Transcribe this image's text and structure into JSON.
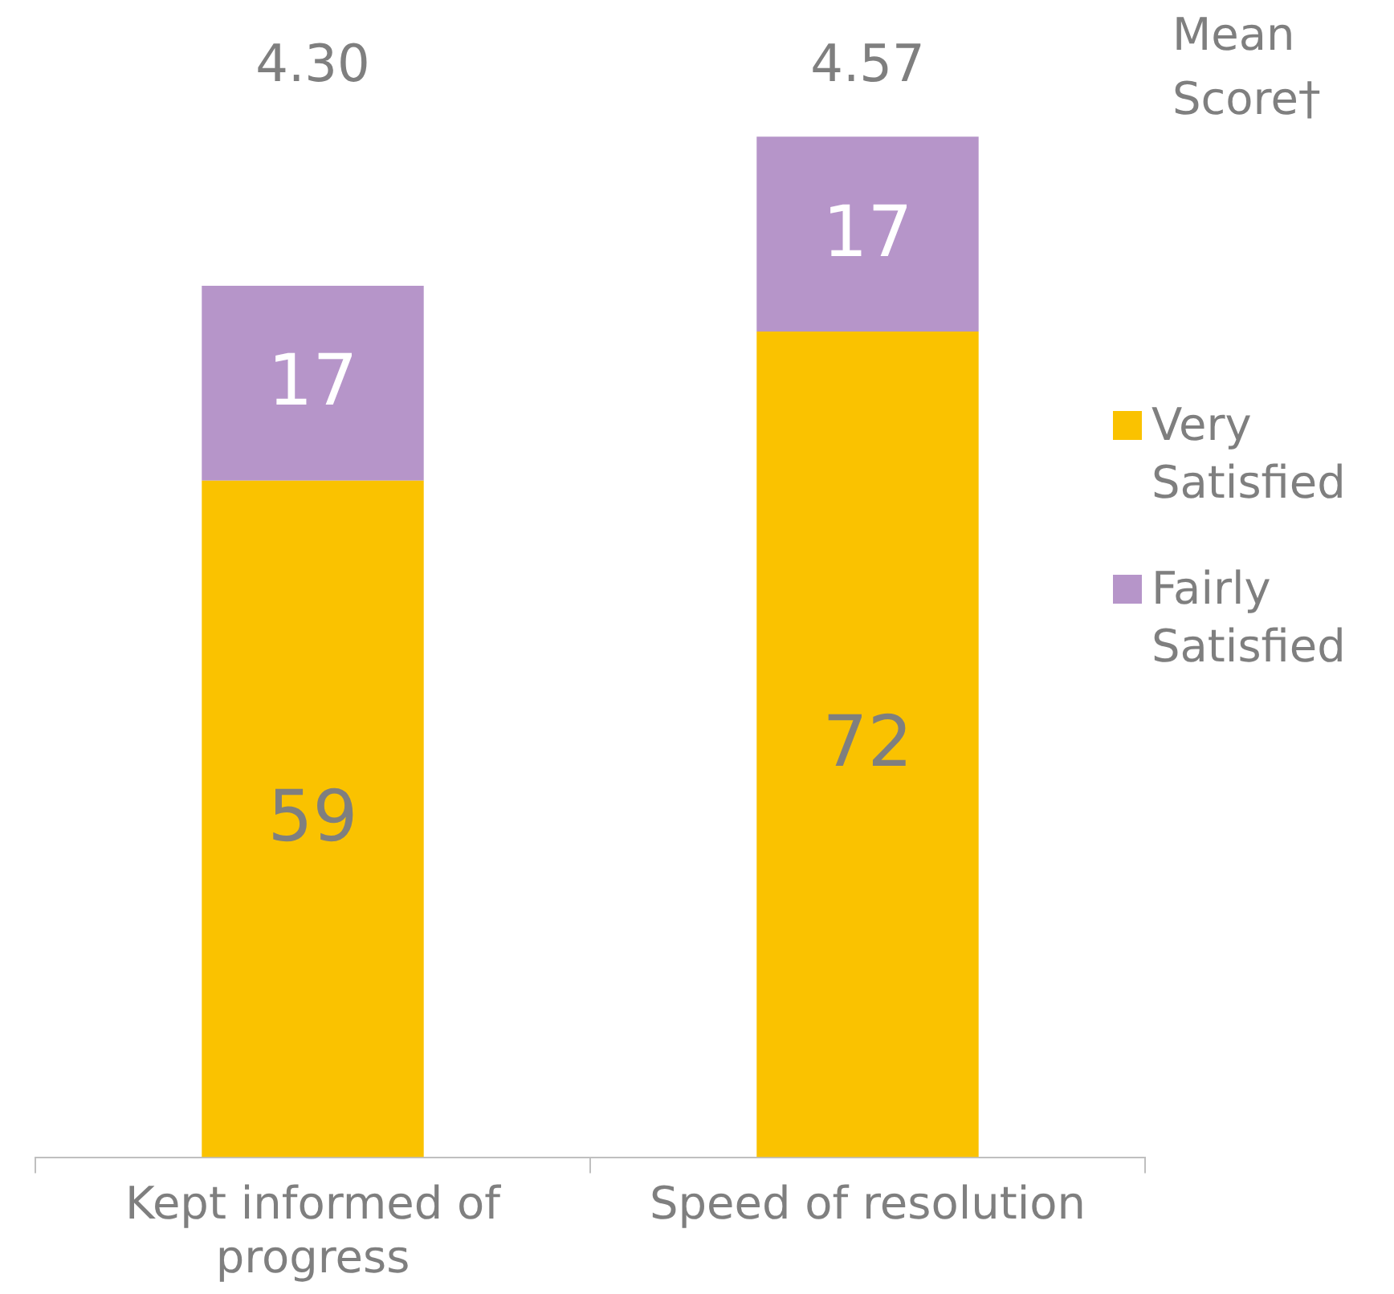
{
  "chart_data": {
    "type": "bar",
    "stacked": true,
    "categories": [
      "Kept informed of progress",
      "Speed of resolution"
    ],
    "series": [
      {
        "name": "Very Satisfied",
        "color": "#fac200",
        "values": [
          59,
          72
        ]
      },
      {
        "name": "Fairly Satisfied",
        "color": "#b695c9",
        "values": [
          17,
          17
        ]
      }
    ],
    "tick_labels": "x",
    "grid": false,
    "legend": "right",
    "data_labels": true,
    "annotations": [
      "Mean Score†",
      "4.30",
      "4.57"
    ]
  }
}
